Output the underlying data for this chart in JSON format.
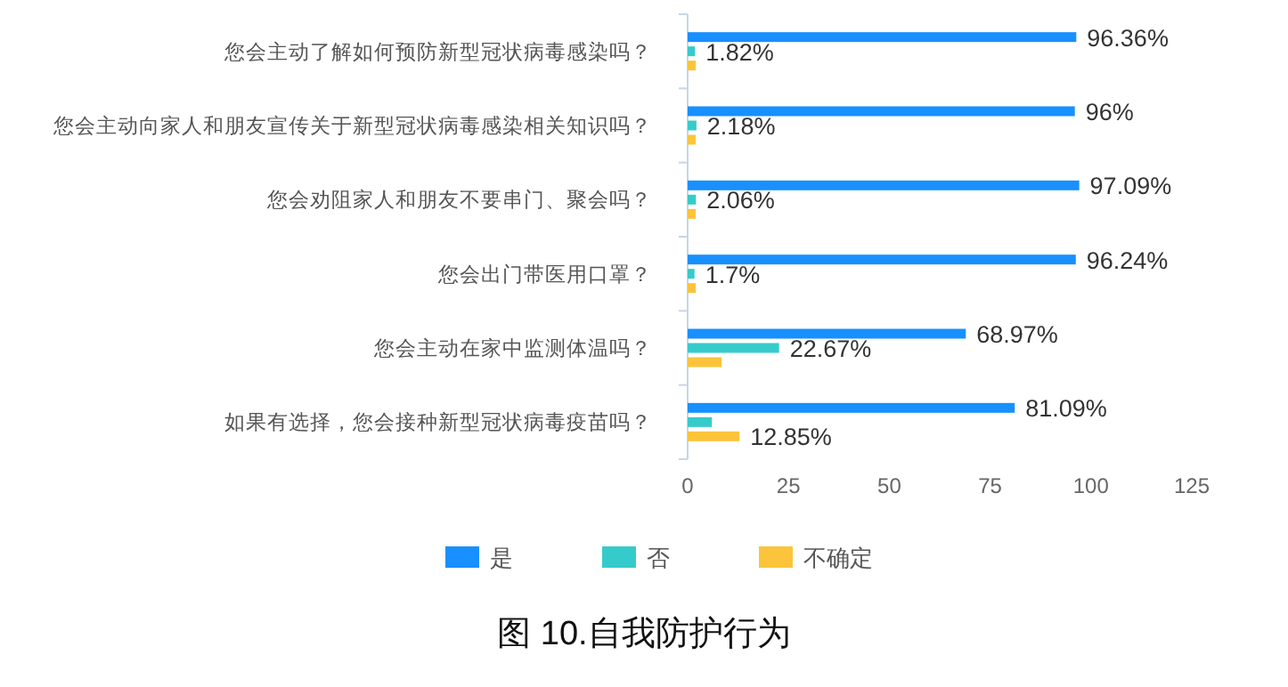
{
  "chart_data": {
    "type": "bar",
    "orientation": "horizontal",
    "title": "图 10.自我防护行为",
    "categories": [
      "您会主动了解如何预防新型冠状病毒感染吗？",
      "您会主动向家人和朋友宣传关于新型冠状病毒感染相关知识吗？",
      "您会劝阻家人和朋友不要串门、聚会吗？",
      "您会出门带医用口罩？",
      "您会主动在家中监测体温吗？",
      "如果有选择，您会接种新型冠状病毒疫苗吗？"
    ],
    "series": [
      {
        "name": "是",
        "color": "#1890ff",
        "values": [
          96.36,
          96,
          97.09,
          96.24,
          68.97,
          81.09
        ],
        "value_labels": [
          "96.36%",
          "96%",
          "97.09%",
          "96.24%",
          "68.97%",
          "81.09%"
        ]
      },
      {
        "name": "否",
        "color": "#36cbcb",
        "values": [
          1.82,
          2.18,
          2.06,
          1.7,
          22.67,
          6
        ],
        "value_labels": [
          "1.82%",
          "2.18%",
          "2.06%",
          "1.7%",
          "22.67%",
          null
        ]
      },
      {
        "name": "不确定",
        "color": "#fbc43a",
        "values": [
          2,
          2,
          2,
          2,
          8.4,
          12.85
        ],
        "value_labels": [
          null,
          null,
          null,
          null,
          null,
          "12.85%"
        ]
      }
    ],
    "xlim": [
      0,
      125
    ],
    "xticks": [
      0,
      25,
      50,
      75,
      100,
      125
    ],
    "grid": false,
    "legend": "bottom"
  }
}
